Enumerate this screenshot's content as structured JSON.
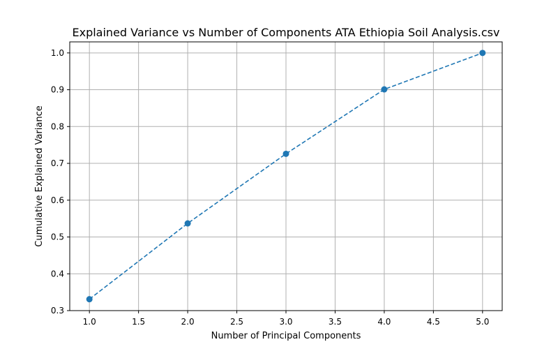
{
  "chart_data": {
    "type": "line",
    "title": "Explained Variance vs Number of Components ATA Ethiopia Soil Analysis.csv",
    "xlabel": "Number of Principal Components",
    "ylabel": "Cumulative Explained Variance",
    "x": [
      1,
      2,
      3,
      4,
      5
    ],
    "series": [
      {
        "values": [
          0.331,
          0.537,
          0.726,
          0.901,
          1.0
        ]
      }
    ],
    "xlim": [
      0.8,
      5.2
    ],
    "ylim": [
      0.3,
      1.03
    ],
    "xticks": [
      "1.0",
      "1.5",
      "2.0",
      "2.5",
      "3.0",
      "3.5",
      "4.0",
      "4.5",
      "5.0"
    ],
    "yticks": [
      "0.3",
      "0.4",
      "0.5",
      "0.6",
      "0.7",
      "0.8",
      "0.9",
      "1.0"
    ],
    "grid": true,
    "line_style": "dashed",
    "marker": "circle",
    "color": "#1f77b4"
  }
}
